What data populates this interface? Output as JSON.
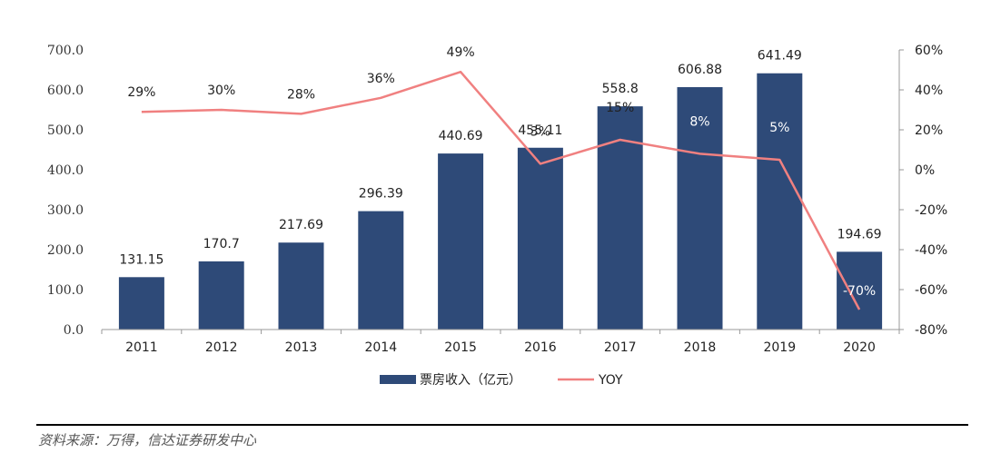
{
  "chart_data": {
    "type": "bar",
    "categories": [
      "2011",
      "2012",
      "2013",
      "2014",
      "2015",
      "2016",
      "2017",
      "2018",
      "2019",
      "2020"
    ],
    "series": [
      {
        "name": "票房收入（亿元）",
        "type": "bar",
        "axis": "left",
        "values": [
          131.15,
          170.7,
          217.69,
          296.39,
          440.69,
          455.11,
          558.8,
          606.88,
          641.49,
          194.69
        ],
        "labels": [
          "131.15",
          "170.7",
          "217.69",
          "296.39",
          "440.69",
          "455.11",
          "558.8",
          "606.88",
          "641.49",
          "194.69"
        ],
        "color": "#2e4a78"
      },
      {
        "name": "YOY",
        "type": "line",
        "axis": "right",
        "values": [
          29,
          30,
          28,
          36,
          49,
          3,
          15,
          8,
          5,
          -70
        ],
        "labels": [
          "29%",
          "30%",
          "28%",
          "36%",
          "49%",
          "3%",
          "15%",
          "8%",
          "5%",
          "-70%"
        ],
        "color": "#f08080"
      }
    ],
    "left_axis": {
      "min": 0,
      "max": 700,
      "step": 100,
      "tick_labels": [
        "0.0",
        "100.0",
        "200.0",
        "300.0",
        "400.0",
        "500.0",
        "600.0",
        "700.0"
      ]
    },
    "right_axis": {
      "min": -80,
      "max": 60,
      "step": 20,
      "tick_labels": [
        "-80%",
        "-60%",
        "-40%",
        "-20%",
        "0%",
        "20%",
        "40%",
        "60%"
      ]
    },
    "legend_placement": "bottom-center",
    "grid": false
  },
  "source_note": "资料来源：万得，信达证券研发中心"
}
